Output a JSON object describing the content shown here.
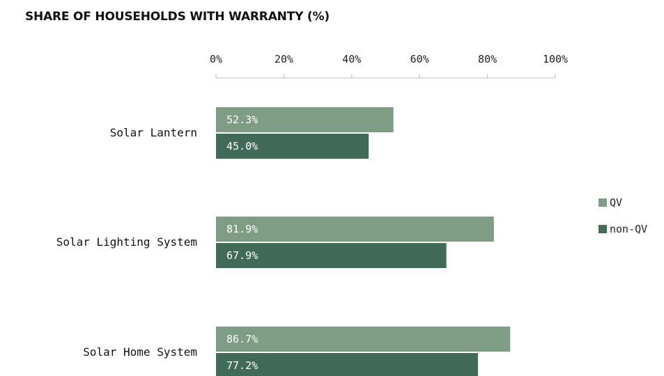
{
  "chart_data": {
    "type": "bar",
    "orientation": "horizontal",
    "title": "SHARE OF HOUSEHOLDS WITH WARRANTY (%)",
    "categories": [
      "Solar Lantern",
      "Solar Lighting System",
      "Solar Home System"
    ],
    "series": [
      {
        "name": "QV",
        "values": [
          52.3,
          81.9,
          86.7
        ],
        "color": "#7f9c84"
      },
      {
        "name": "non-QV",
        "values": [
          45.0,
          67.9,
          77.2
        ],
        "color": "#426a58"
      }
    ],
    "value_labels": [
      [
        "52.3%",
        "81.9%",
        "86.7%"
      ],
      [
        "45.0%",
        "67.9%",
        "77.2%"
      ]
    ],
    "xlim": [
      0,
      100
    ],
    "x_ticks": [
      0,
      20,
      40,
      60,
      80,
      100
    ],
    "x_tick_labels": [
      "0%",
      "20%",
      "40%",
      "60%",
      "80%",
      "100%"
    ],
    "x_axis_position": "top",
    "grid": false,
    "legend_position": "right"
  }
}
